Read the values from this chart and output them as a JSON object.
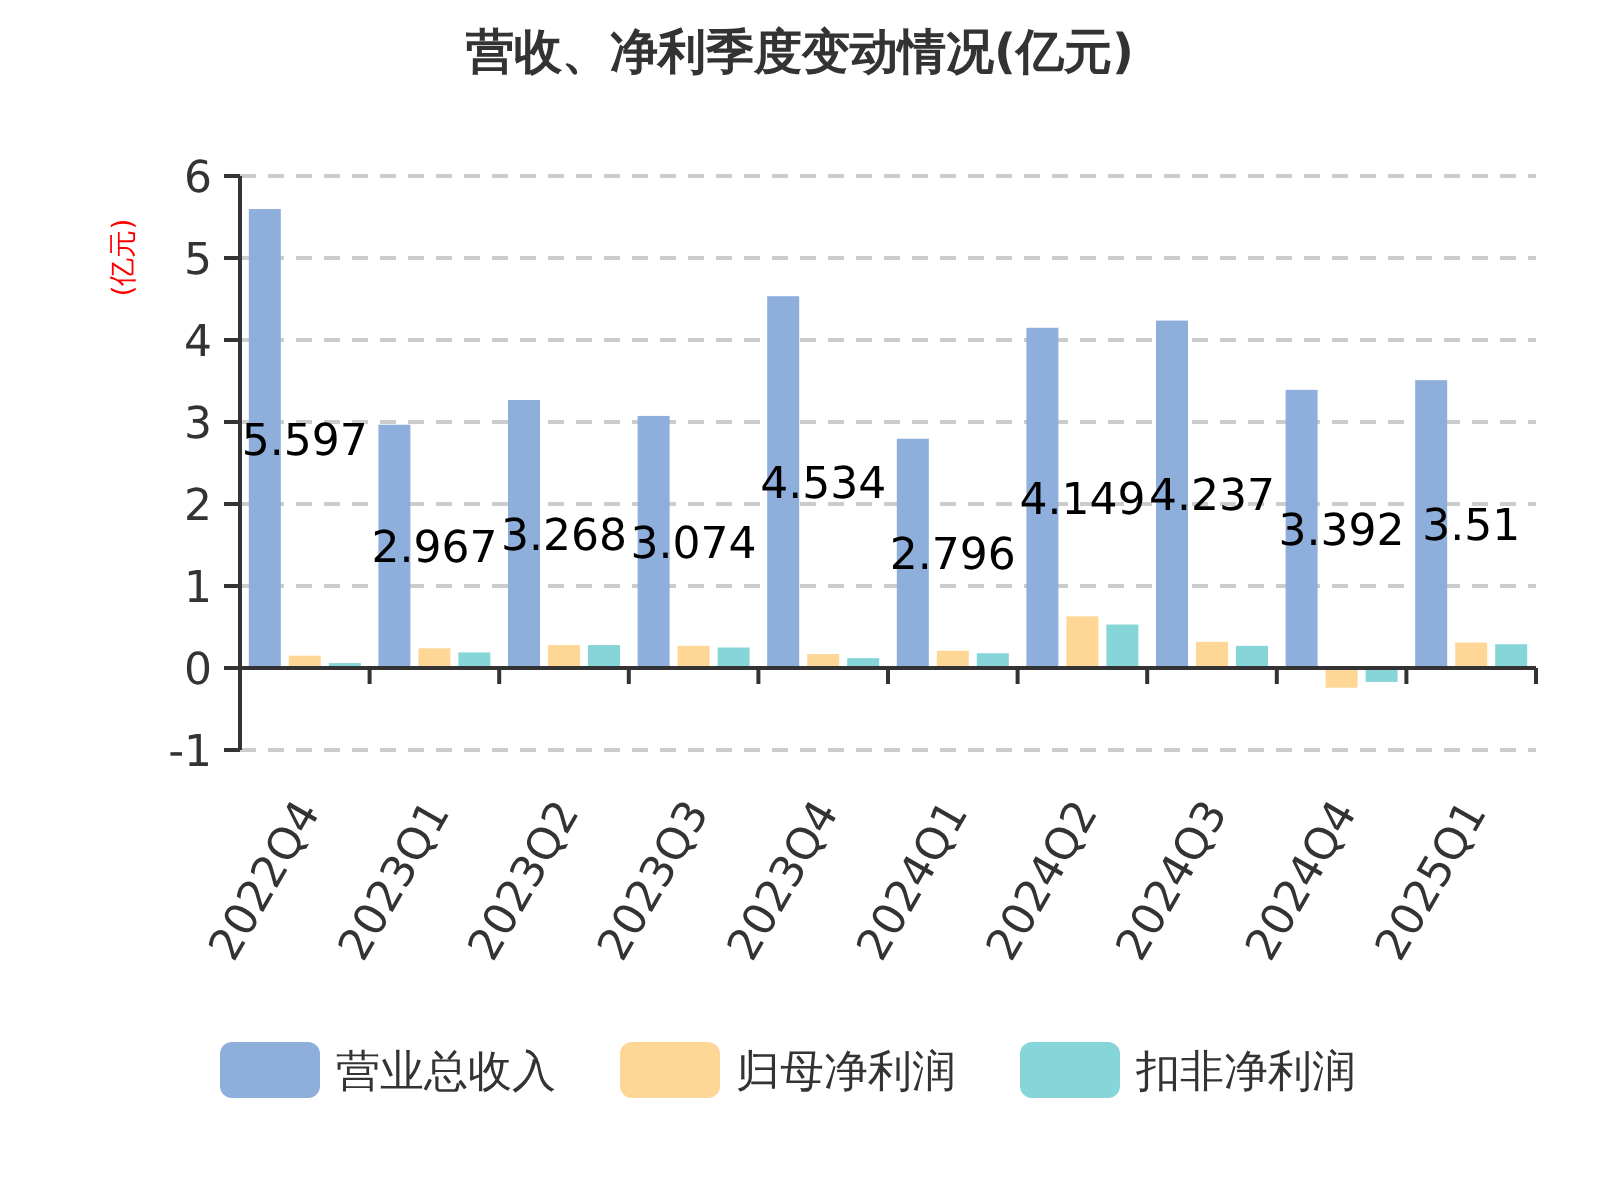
{
  "chart_data": {
    "type": "bar",
    "title": "营收、净利季度变动情况(亿元)",
    "ylabel": "(亿元)",
    "categories": [
      "2022Q4",
      "2023Q1",
      "2023Q2",
      "2023Q3",
      "2023Q4",
      "2024Q1",
      "2024Q2",
      "2024Q3",
      "2024Q4",
      "2025Q1"
    ],
    "series": [
      {
        "name": "营业总收入",
        "color": "#8eaedc",
        "values": [
          5.597,
          2.967,
          3.268,
          3.074,
          4.534,
          2.796,
          4.149,
          4.237,
          3.392,
          3.51
        ],
        "value_labels": [
          "5.597",
          "2.967",
          "3.268",
          "3.074",
          "4.534",
          "2.796",
          "4.149",
          "4.237",
          "3.392",
          "3.51"
        ]
      },
      {
        "name": "归母净利润",
        "color": "#fed797",
        "values": [
          0.15,
          0.24,
          0.28,
          0.27,
          0.17,
          0.21,
          0.63,
          0.32,
          -0.24,
          0.31
        ]
      },
      {
        "name": "扣非净利润",
        "color": "#86d5d8",
        "values": [
          0.06,
          0.19,
          0.28,
          0.25,
          0.12,
          0.18,
          0.53,
          0.27,
          -0.17,
          0.29
        ]
      }
    ],
    "ylim": [
      -1,
      6
    ],
    "yticks": [
      -1,
      0,
      1,
      2,
      3,
      4,
      5,
      6
    ],
    "grid": "y",
    "legend": "bottom"
  }
}
